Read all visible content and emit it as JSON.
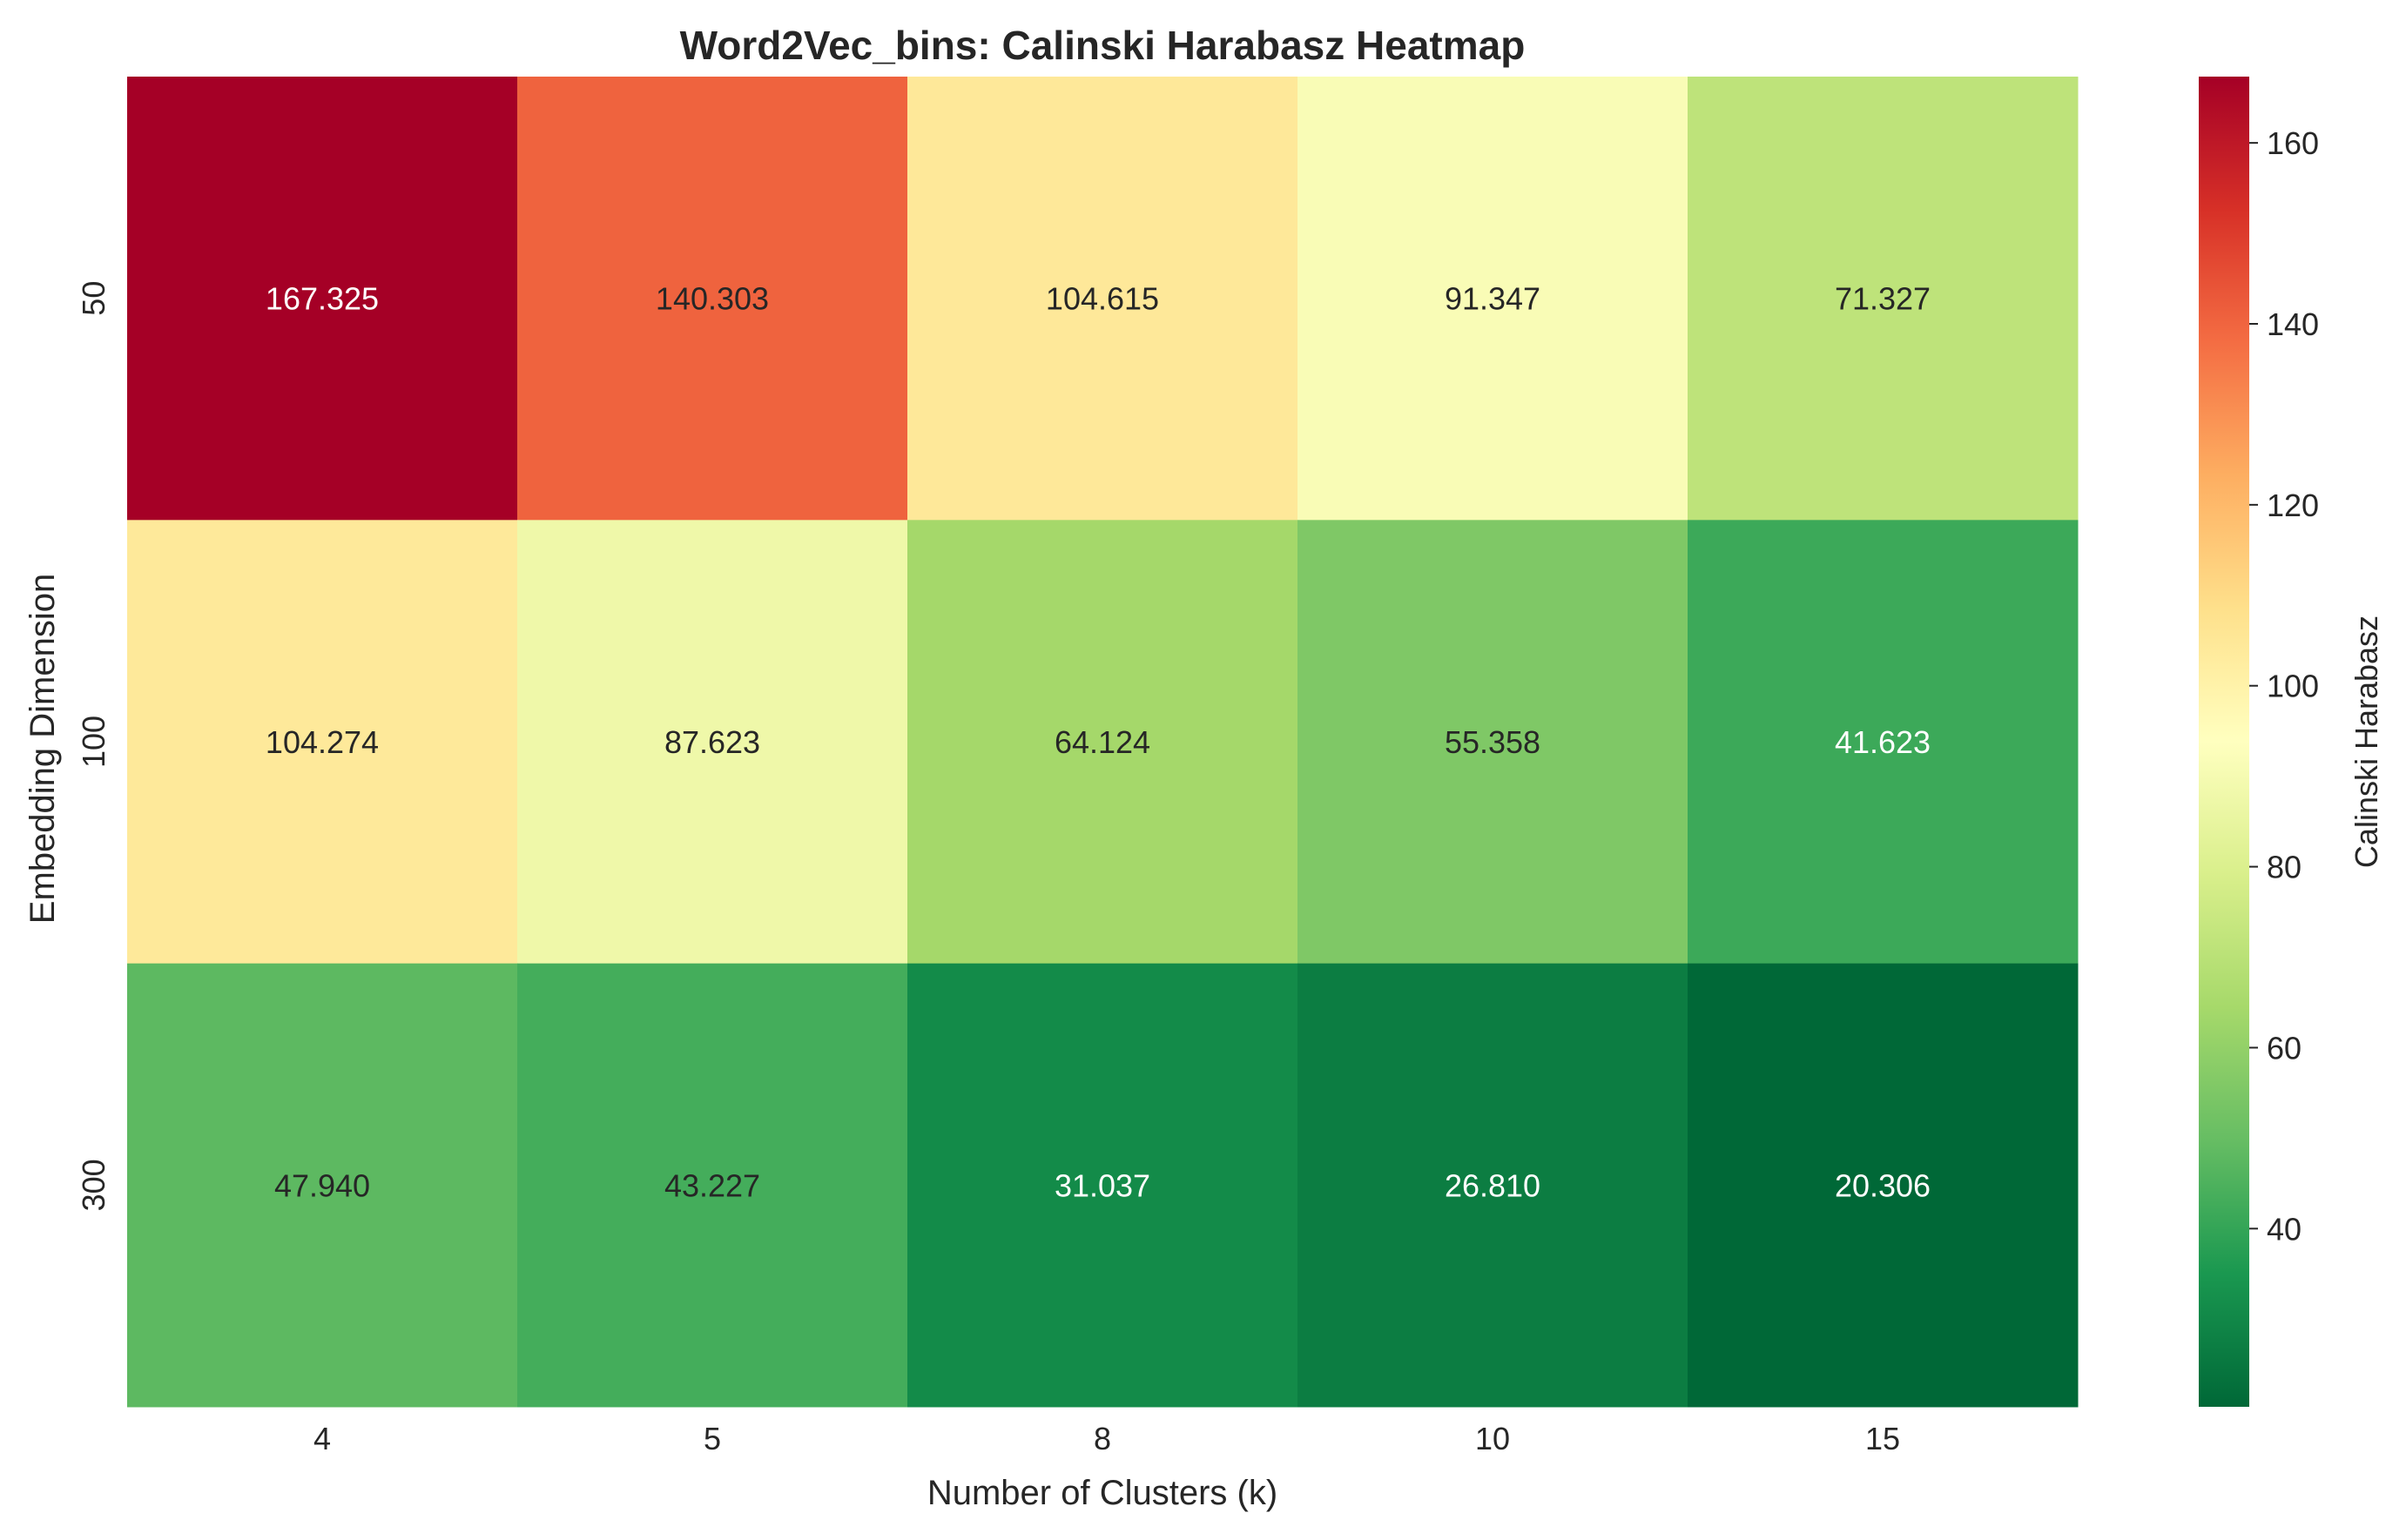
{
  "chart_data": {
    "type": "heatmap",
    "title": "Word2Vec_bins: Calinski Harabasz Heatmap",
    "xlabel": "Number of Clusters (k)",
    "ylabel": "Embedding Dimension",
    "x_categories": [
      "4",
      "5",
      "8",
      "10",
      "15"
    ],
    "y_categories": [
      "50",
      "100",
      "300"
    ],
    "values": [
      [
        167.325,
        140.303,
        104.615,
        91.347,
        71.327
      ],
      [
        104.274,
        87.623,
        64.124,
        55.358,
        41.623
      ],
      [
        47.94,
        43.227,
        31.037,
        26.81,
        20.306
      ]
    ],
    "value_labels": [
      [
        "167.325",
        "140.303",
        "104.615",
        "91.347",
        "71.327"
      ],
      [
        "104.274",
        "87.623",
        "64.124",
        "55.358",
        "41.623"
      ],
      [
        "47.940",
        "43.227",
        "31.037",
        "26.810",
        "20.306"
      ]
    ],
    "colormap": "RdYlGn_r",
    "vmin": 20.306,
    "vmax": 167.325,
    "colorbar": {
      "label": "Calinski Harabasz",
      "ticks": [
        40,
        60,
        80,
        100,
        120,
        140,
        160
      ],
      "tick_labels": [
        "40",
        "60",
        "80",
        "100",
        "120",
        "140",
        "160"
      ]
    },
    "grid": false
  }
}
